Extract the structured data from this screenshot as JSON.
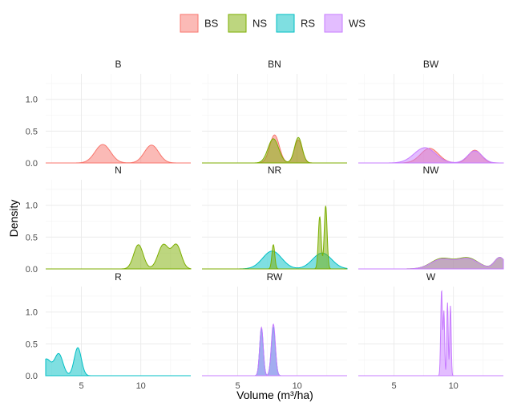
{
  "chart_data": {
    "type": "area",
    "subtype": "faceted-density",
    "xlabel": "Volume (m³/ha)",
    "ylabel": "Density",
    "xlim": [
      2,
      14.2
    ],
    "ylim": [
      0,
      1.4
    ],
    "x_ticks": [
      5,
      10
    ],
    "y_ticks": [
      0.0,
      0.5,
      1.0
    ],
    "y_tick_labels": [
      "0.0",
      "0.5",
      "1.0"
    ],
    "x_tick_labels": [
      "5",
      "10"
    ],
    "legend": {
      "position": "top",
      "entries": [
        {
          "name": "BS",
          "fill": "#F8766D",
          "stroke": "#F8766D"
        },
        {
          "name": "NS",
          "fill": "#7CAE00",
          "stroke": "#7CAE00"
        },
        {
          "name": "RS",
          "fill": "#00BFC4",
          "stroke": "#00BFC4"
        },
        {
          "name": "WS",
          "fill": "#C77CFF",
          "stroke": "#C77CFF"
        }
      ]
    },
    "facets": [
      {
        "name": "B",
        "show_x_ticks": false,
        "series": [
          {
            "group": "BS",
            "peaks": [
              [
                6.8,
                0.29,
                0.65
              ],
              [
                10.9,
                0.28,
                0.6
              ]
            ]
          }
        ]
      },
      {
        "name": "BN",
        "show_x_ticks": false,
        "series": [
          {
            "group": "BS",
            "peaks": [
              [
                8.1,
                0.44,
                0.4
              ],
              [
                10.1,
                0.36,
                0.33
              ]
            ]
          },
          {
            "group": "NS",
            "peaks": [
              [
                8.0,
                0.38,
                0.45
              ],
              [
                10.1,
                0.4,
                0.32
              ]
            ]
          }
        ]
      },
      {
        "name": "BW",
        "show_x_ticks": false,
        "series": [
          {
            "group": "BS",
            "peaks": [
              [
                8.0,
                0.23,
                0.75
              ],
              [
                11.8,
                0.2,
                0.55
              ]
            ]
          },
          {
            "group": "WS",
            "peaks": [
              [
                7.6,
                0.24,
                0.9
              ],
              [
                11.8,
                0.19,
                0.6
              ]
            ]
          }
        ]
      },
      {
        "name": "N",
        "show_x_ticks": false,
        "series": [
          {
            "group": "NS",
            "peaks": [
              [
                9.8,
                0.38,
                0.4
              ],
              [
                11.9,
                0.38,
                0.45
              ],
              [
                13.0,
                0.37,
                0.4
              ]
            ]
          }
        ]
      },
      {
        "name": "NR",
        "show_x_ticks": false,
        "series": [
          {
            "group": "RS",
            "peaks": [
              [
                7.9,
                0.28,
                0.8
              ],
              [
                12.1,
                0.25,
                0.8
              ]
            ]
          },
          {
            "group": "NS",
            "peaks": [
              [
                8.0,
                0.38,
                0.12
              ],
              [
                11.9,
                0.82,
                0.12
              ],
              [
                12.4,
                0.99,
                0.12
              ]
            ]
          }
        ]
      },
      {
        "name": "NW",
        "show_x_ticks": false,
        "series": [
          {
            "group": "NS",
            "peaks": [
              [
                9.0,
                0.16,
                0.9
              ],
              [
                11.2,
                0.17,
                0.9
              ],
              [
                13.9,
                0.18,
                0.45
              ]
            ]
          },
          {
            "group": "WS",
            "peaks": [
              [
                9.0,
                0.15,
                0.9
              ],
              [
                11.2,
                0.16,
                0.9
              ],
              [
                13.9,
                0.18,
                0.45
              ]
            ]
          }
        ]
      },
      {
        "name": "R",
        "show_x_ticks": true,
        "series": [
          {
            "group": "RS",
            "peaks": [
              [
                2.05,
                0.26,
                0.4
              ],
              [
                3.1,
                0.34,
                0.35
              ],
              [
                4.7,
                0.44,
                0.3
              ]
            ]
          }
        ]
      },
      {
        "name": "RW",
        "show_x_ticks": true,
        "series": [
          {
            "group": "RS",
            "peaks": [
              [
                7.0,
                0.74,
                0.15
              ],
              [
                8.0,
                0.76,
                0.17
              ]
            ]
          },
          {
            "group": "WS",
            "peaks": [
              [
                7.0,
                0.76,
                0.15
              ],
              [
                8.0,
                0.81,
                0.17
              ]
            ]
          }
        ]
      },
      {
        "name": "W",
        "show_x_ticks": true,
        "series": [
          {
            "group": "WS",
            "peaks": [
              [
                9.0,
                1.35,
                0.07
              ],
              [
                9.2,
                1.0,
                0.06
              ],
              [
                9.5,
                1.15,
                0.06
              ],
              [
                9.75,
                1.1,
                0.06
              ]
            ]
          }
        ]
      }
    ]
  }
}
